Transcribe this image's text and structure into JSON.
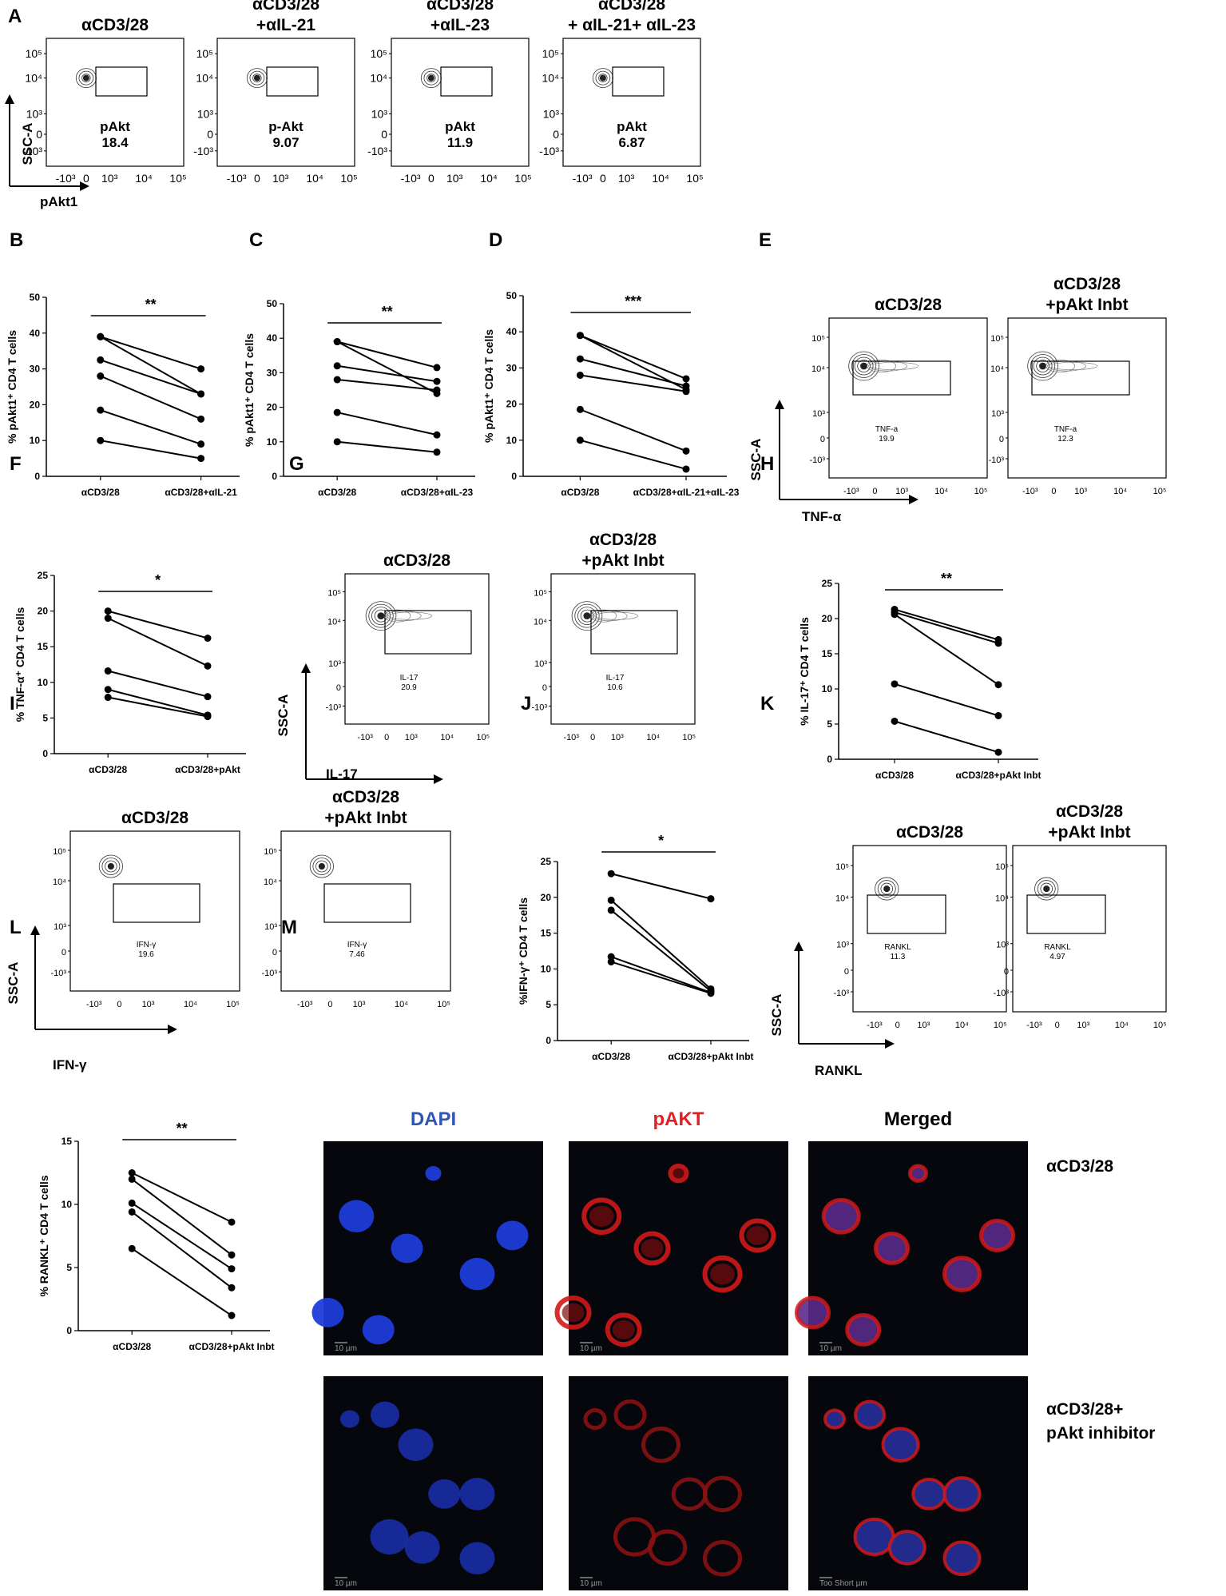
{
  "panel_letters": [
    "A",
    "B",
    "C",
    "D",
    "E",
    "F",
    "G",
    "H",
    "I",
    "J",
    "K",
    "L",
    "M"
  ],
  "shared": {
    "flow_y_ticks": [
      "10⁵",
      "10⁴",
      "10³",
      "0",
      "-10³"
    ],
    "flow_x_ticks": [
      "-10³",
      "0",
      "10³",
      "10⁴",
      "10⁵"
    ],
    "ssc_label": "SSC-A",
    "sig_two": "**",
    "sig_three": "***",
    "sig_one": "*"
  },
  "panelA": {
    "plots": [
      {
        "title": "αCD3/28",
        "gate_label": "pAkt",
        "gate_value": "18.4"
      },
      {
        "title": "αCD3/28\n+αIL-21",
        "gate_label": "p-Akt",
        "gate_value": "9.07"
      },
      {
        "title": "αCD3/28\n+αIL-23",
        "gate_label": "pAkt",
        "gate_value": "11.9"
      },
      {
        "title": "αCD3/28\n+ αIL-21+ αIL-23",
        "gate_label": "pAkt",
        "gate_value": "6.87"
      }
    ],
    "x_axis_label": "pAkt1"
  },
  "panelE": {
    "plots": [
      {
        "title": "αCD3/28",
        "gate_label": "TNF-a",
        "gate_value": "19.9"
      },
      {
        "title": "αCD3/28\n+pAkt Inbt",
        "gate_label": "TNF-a",
        "gate_value": "12.3"
      }
    ],
    "x_axis_label": "TNF-α"
  },
  "panelG": {
    "plots": [
      {
        "title": "αCD3/28",
        "gate_label": "IL-17",
        "gate_value": "20.9"
      },
      {
        "title": "αCD3/28\n+pAkt Inbt",
        "gate_label": "IL-17",
        "gate_value": "10.6"
      }
    ],
    "x_axis_label": "IL-17"
  },
  "panelI": {
    "plots": [
      {
        "title": "αCD3/28",
        "gate_label": "IFN-γ",
        "gate_value": "19.6"
      },
      {
        "title": "αCD3/28\n+pAkt Inbt",
        "gate_label": "IFN-γ",
        "gate_value": "7.46"
      }
    ],
    "x_axis_label": "IFN-γ"
  },
  "panelK": {
    "plots": [
      {
        "title": "αCD3/28",
        "gate_label": "RANKL",
        "gate_value": "11.3"
      },
      {
        "title": "αCD3/28\n+pAkt Inbt",
        "gate_label": "RANKL",
        "gate_value": "4.97"
      }
    ],
    "x_axis_label": "RANKL"
  },
  "panelM": {
    "column_titles": [
      "DAPI",
      "pAKT",
      "Merged"
    ],
    "row_labels": [
      "αCD3/28",
      "αCD3/28+\npAkt inhibitor"
    ],
    "scale_text": [
      "10 µm",
      "10 µm",
      "10 µm",
      "10 µm",
      "10 µm",
      "Too Short µm"
    ],
    "colors": {
      "dapi": "#2f55b5",
      "pakt": "#e02020",
      "merged": "#000000"
    }
  },
  "chart_data": [
    {
      "panel": "B",
      "type": "line",
      "ylabel": "% pAkt1⁺ CD4 T cells",
      "categories": [
        "αCD3/28",
        "αCD3/28+αIL-21"
      ],
      "ylim": [
        0,
        50
      ],
      "yticks": [
        0,
        10,
        20,
        30,
        40,
        50
      ],
      "significance": "**",
      "series": [
        {
          "values": [
            39,
            30
          ]
        },
        {
          "values": [
            32.5,
            23
          ]
        },
        {
          "values": [
            28,
            16
          ]
        },
        {
          "values": [
            18.5,
            9
          ]
        },
        {
          "values": [
            10,
            5
          ]
        },
        {
          "values": [
            39,
            23
          ]
        }
      ]
    },
    {
      "panel": "C",
      "type": "line",
      "ylabel": "% pAkt1⁺ CD4 T cells",
      "categories": [
        "αCD3/28",
        "αCD3/28+αIL-23"
      ],
      "ylim": [
        0,
        50
      ],
      "yticks": [
        0,
        10,
        20,
        30,
        40,
        50
      ],
      "significance": "**",
      "series": [
        {
          "values": [
            39,
            31.5
          ]
        },
        {
          "values": [
            32,
            27.5
          ]
        },
        {
          "values": [
            28,
            25
          ]
        },
        {
          "values": [
            18.5,
            12
          ]
        },
        {
          "values": [
            10,
            7
          ]
        },
        {
          "values": [
            39,
            24
          ]
        }
      ]
    },
    {
      "panel": "D",
      "type": "line",
      "ylabel": "% pAkt1⁺ CD4 T cells",
      "categories": [
        "αCD3/28",
        "αCD3/28+αIL-21+αIL-23"
      ],
      "ylim": [
        0,
        50
      ],
      "yticks": [
        0,
        10,
        20,
        30,
        40,
        50
      ],
      "significance": "***",
      "series": [
        {
          "values": [
            39,
            27
          ]
        },
        {
          "values": [
            32.5,
            25
          ]
        },
        {
          "values": [
            28,
            23.5
          ]
        },
        {
          "values": [
            18.5,
            7
          ]
        },
        {
          "values": [
            10,
            2
          ]
        },
        {
          "values": [
            39,
            24
          ]
        }
      ]
    },
    {
      "panel": "F",
      "type": "line",
      "ylabel": "% TNF-α⁺ CD4 T cells",
      "categories": [
        "αCD3/28",
        "αCD3/28+pAkt"
      ],
      "ylim": [
        0,
        25
      ],
      "yticks": [
        0,
        5,
        10,
        15,
        20,
        25
      ],
      "significance": "*",
      "series": [
        {
          "values": [
            20,
            16.2
          ]
        },
        {
          "values": [
            19,
            12.3
          ]
        },
        {
          "values": [
            11.6,
            8
          ]
        },
        {
          "values": [
            9,
            5.4
          ]
        },
        {
          "values": [
            7.9,
            5.2
          ]
        }
      ]
    },
    {
      "panel": "H",
      "type": "line",
      "ylabel": "% IL-17⁺ CD4 T cells",
      "categories": [
        "αCD3/28",
        "αCD3/28+pAkt Inbt"
      ],
      "ylim": [
        0,
        25
      ],
      "yticks": [
        0,
        5,
        10,
        15,
        20,
        25
      ],
      "significance": "**",
      "series": [
        {
          "values": [
            21.3,
            17
          ]
        },
        {
          "values": [
            20.9,
            16.5
          ]
        },
        {
          "values": [
            20.6,
            10.6
          ]
        },
        {
          "values": [
            10.7,
            6.2
          ]
        },
        {
          "values": [
            5.4,
            1
          ]
        }
      ]
    },
    {
      "panel": "J",
      "type": "line",
      "ylabel": "%IFN-γ⁺ CD4 T cells",
      "categories": [
        "αCD3/28",
        "αCD3/28+pAkt Inbt"
      ],
      "ylim": [
        0,
        25
      ],
      "yticks": [
        0,
        5,
        10,
        15,
        20,
        25
      ],
      "significance": "*",
      "series": [
        {
          "values": [
            23.3,
            19.8
          ]
        },
        {
          "values": [
            19.6,
            7.2
          ]
        },
        {
          "values": [
            18.2,
            6.9
          ]
        },
        {
          "values": [
            11.7,
            6.7
          ]
        },
        {
          "values": [
            11,
            6.6
          ]
        }
      ]
    },
    {
      "panel": "L",
      "type": "line",
      "ylabel": "% RANKL⁺ CD4 T cells",
      "categories": [
        "αCD3/28",
        "αCD3/28+pAkt Inbt"
      ],
      "ylim": [
        0,
        15
      ],
      "yticks": [
        0,
        5,
        10,
        15
      ],
      "significance": "**",
      "series": [
        {
          "values": [
            12.5,
            8.6
          ]
        },
        {
          "values": [
            12,
            6
          ]
        },
        {
          "values": [
            10.1,
            4.9
          ]
        },
        {
          "values": [
            9.4,
            3.4
          ]
        },
        {
          "values": [
            6.5,
            1.2
          ]
        }
      ]
    }
  ]
}
